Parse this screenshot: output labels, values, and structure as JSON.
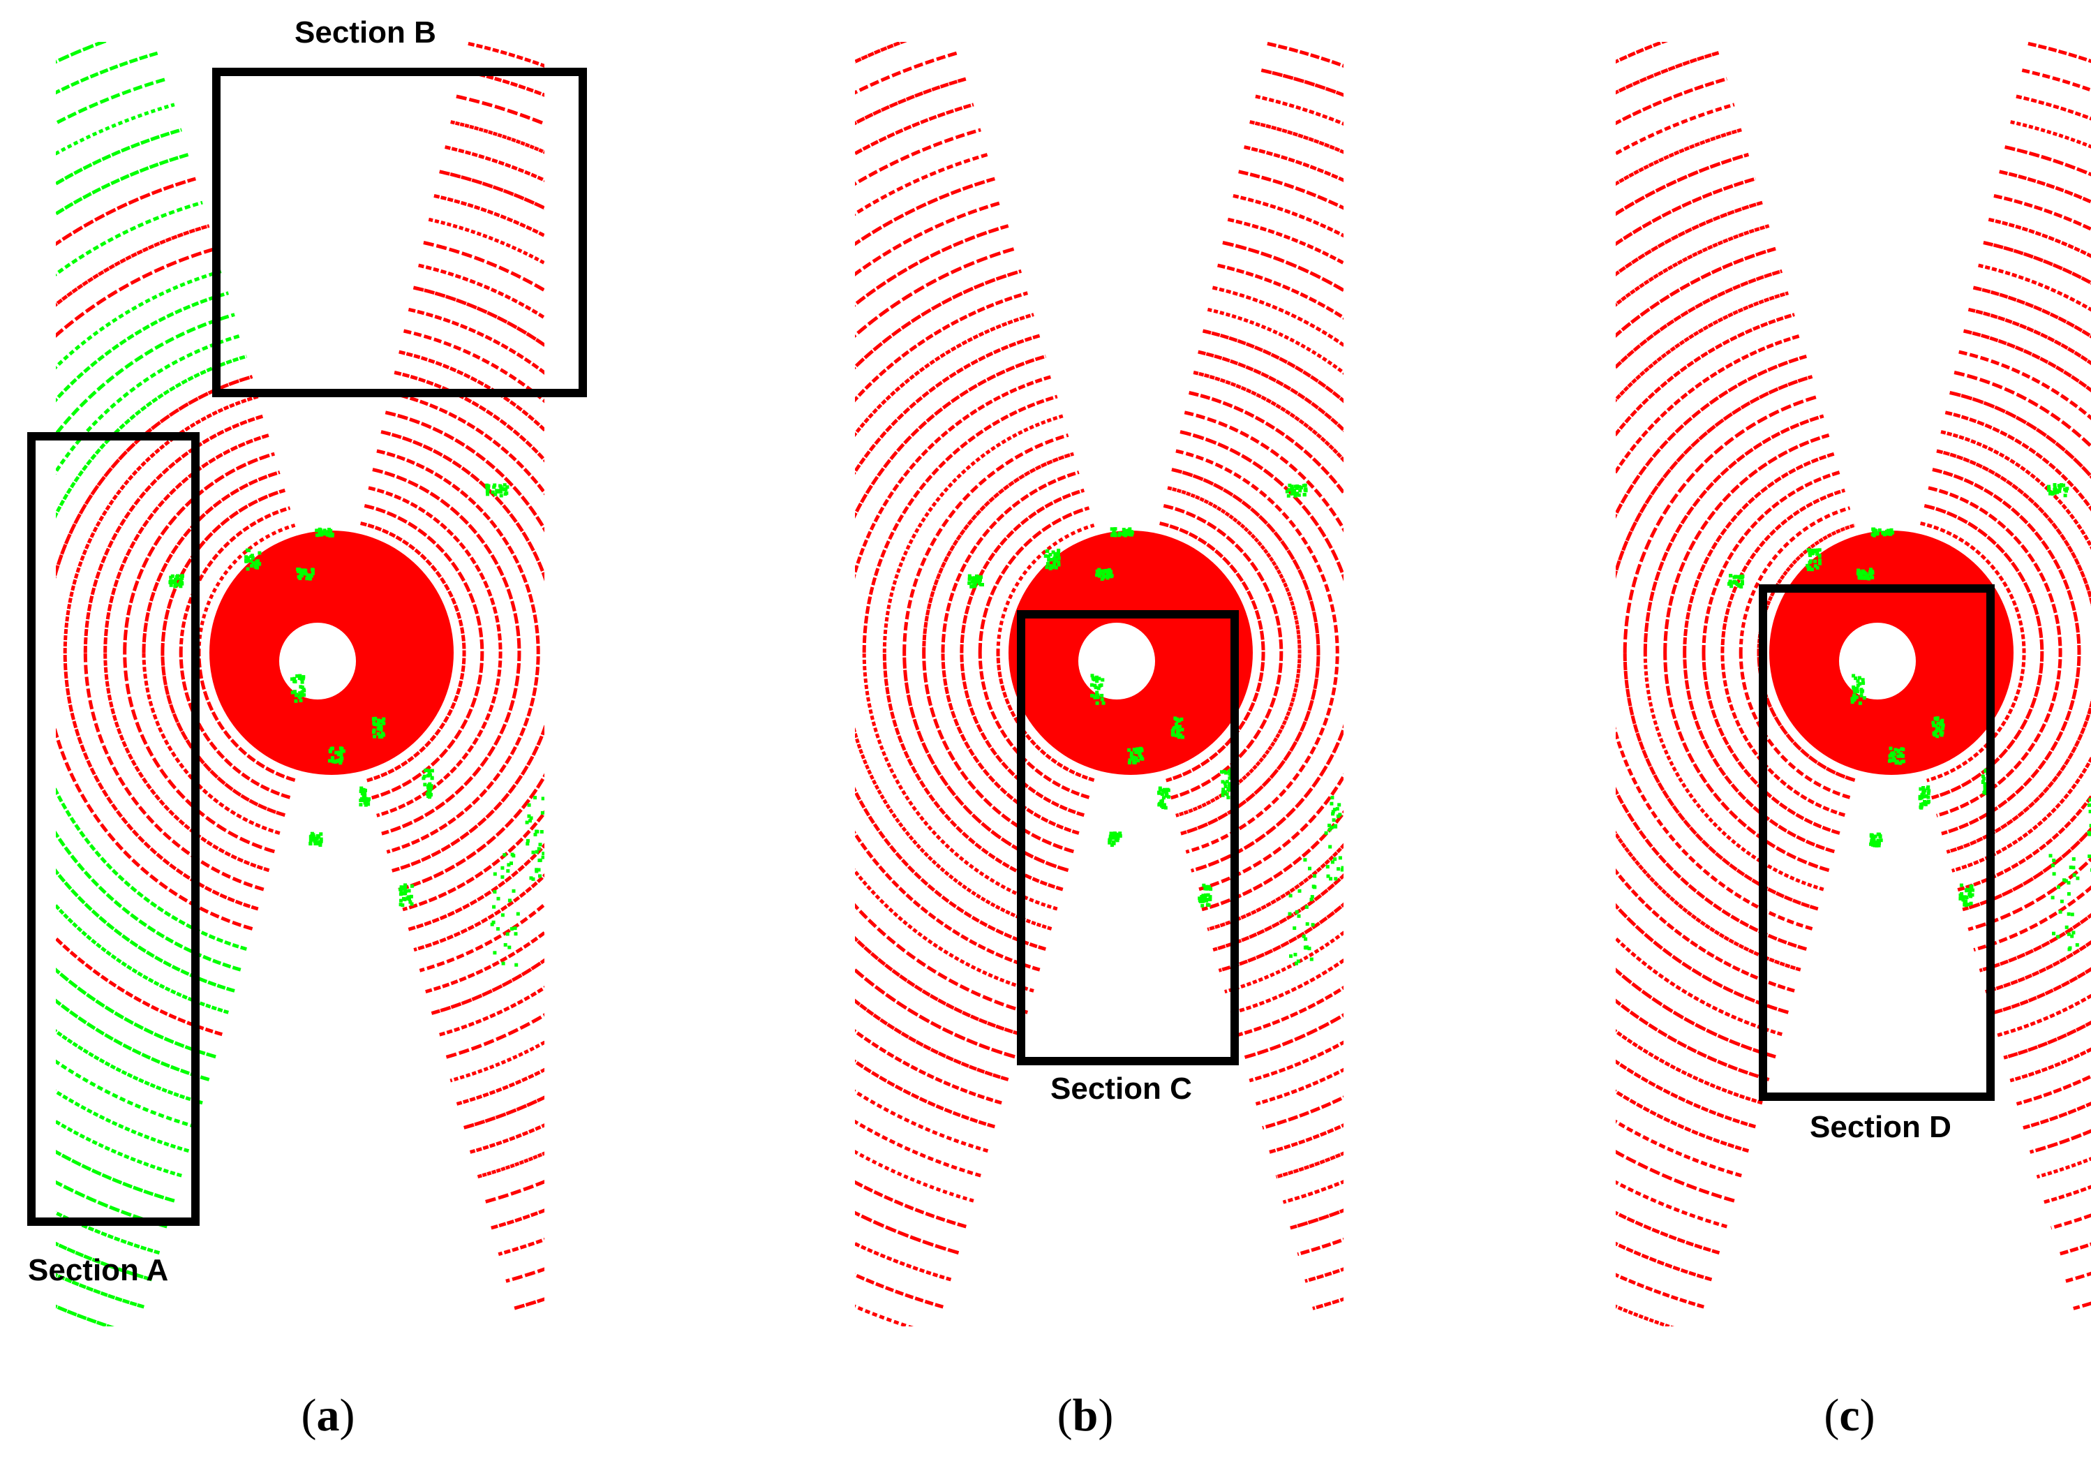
{
  "colors": {
    "ground": "#ff0000",
    "non_ground": "#00ff00",
    "box": "#000000"
  },
  "panels": [
    {
      "caption_open": "(",
      "caption_letter": "a",
      "caption_close": ")",
      "sections": [
        {
          "label": "Section A"
        },
        {
          "label": "Section B"
        }
      ]
    },
    {
      "caption_open": "(",
      "caption_letter": "b",
      "caption_close": ")",
      "sections": [
        {
          "label": "Section C"
        }
      ]
    },
    {
      "caption_open": "(",
      "caption_letter": "c",
      "caption_close": ")",
      "sections": [
        {
          "label": "Section D"
        }
      ]
    }
  ]
}
